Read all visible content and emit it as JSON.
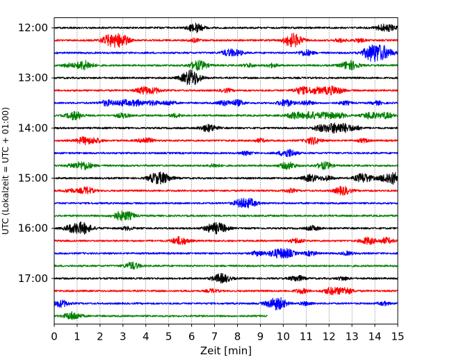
{
  "chart_data": {
    "type": "line",
    "subtype": "seismic-helicorder",
    "title": "",
    "xlabel": "Zeit  [min]",
    "ylabel": "UTC (Lokalzeit = UTC + 01:00)",
    "xlim": [
      0,
      15
    ],
    "x_ticks": [
      "0",
      "1",
      "2",
      "3",
      "4",
      "5",
      "6",
      "7",
      "8",
      "9",
      "10",
      "11",
      "12",
      "13",
      "14",
      "15"
    ],
    "y_ticks": [
      "12:00",
      "13:00",
      "14:00",
      "15:00",
      "16:00",
      "17:00"
    ],
    "grid": {
      "x": "dotted-vertical",
      "y": false
    },
    "trace_interval_minutes": 15,
    "trace_colors": [
      "#000000",
      "#ff0000",
      "#0000ff",
      "#008000"
    ],
    "traces": [
      {
        "start": "12:00",
        "end_min": 15,
        "events": [
          {
            "t": 6.1,
            "a": 0.55
          },
          {
            "t": 6.3,
            "a": 0.4
          },
          {
            "t": 14.3,
            "a": 0.5
          },
          {
            "t": 14.7,
            "a": 0.4
          }
        ]
      },
      {
        "start": "12:15",
        "end_min": 15,
        "events": [
          {
            "t": 2.7,
            "a": 0.9
          },
          {
            "t": 2.3,
            "a": 0.5
          },
          {
            "t": 3.0,
            "a": 0.5
          },
          {
            "t": 6.1,
            "a": 0.3
          },
          {
            "t": 10.5,
            "a": 0.8
          },
          {
            "t": 10.3,
            "a": 0.5
          },
          {
            "t": 12.5,
            "a": 0.3
          },
          {
            "t": 13.3,
            "a": 0.3
          }
        ]
      },
      {
        "start": "12:30",
        "end_min": 15,
        "events": [
          {
            "t": 7.6,
            "a": 0.5
          },
          {
            "t": 8.0,
            "a": 0.4
          },
          {
            "t": 11.0,
            "a": 0.5
          },
          {
            "t": 13.8,
            "a": 0.8
          },
          {
            "t": 14.4,
            "a": 0.9
          },
          {
            "t": 14.0,
            "a": 0.7
          }
        ]
      },
      {
        "start": "12:45",
        "end_min": 15,
        "events": [
          {
            "t": 1.3,
            "a": 0.8
          },
          {
            "t": 0.6,
            "a": 0.3
          },
          {
            "t": 6.3,
            "a": 0.8
          },
          {
            "t": 12.9,
            "a": 0.8
          },
          {
            "t": 8.5,
            "a": 0.3
          },
          {
            "t": 9.5,
            "a": 0.3
          }
        ]
      },
      {
        "start": "13:00",
        "end_min": 15,
        "events": [
          {
            "t": 5.9,
            "a": 0.9
          },
          {
            "t": 6.1,
            "a": 0.6
          }
        ]
      },
      {
        "start": "13:15",
        "end_min": 15,
        "events": [
          {
            "t": 3.9,
            "a": 0.6
          },
          {
            "t": 4.4,
            "a": 0.4
          },
          {
            "t": 7.5,
            "a": 0.3
          },
          {
            "t": 10.8,
            "a": 0.6
          },
          {
            "t": 11.4,
            "a": 0.5
          },
          {
            "t": 12.0,
            "a": 0.6
          },
          {
            "t": 12.4,
            "a": 0.4
          }
        ]
      },
      {
        "start": "13:30",
        "end_min": 15,
        "events": [
          {
            "t": 2.3,
            "a": 0.5
          },
          {
            "t": 3.0,
            "a": 0.5
          },
          {
            "t": 3.6,
            "a": 0.5
          },
          {
            "t": 4.3,
            "a": 0.4
          },
          {
            "t": 5.0,
            "a": 0.4
          },
          {
            "t": 7.4,
            "a": 0.4
          },
          {
            "t": 8.0,
            "a": 0.5
          },
          {
            "t": 10.1,
            "a": 0.6
          },
          {
            "t": 11.0,
            "a": 0.4
          },
          {
            "t": 12.7,
            "a": 0.3
          },
          {
            "t": 14.1,
            "a": 0.3
          }
        ]
      },
      {
        "start": "13:45",
        "end_min": 15,
        "events": [
          {
            "t": 0.9,
            "a": 0.7
          },
          {
            "t": 3.0,
            "a": 0.4
          },
          {
            "t": 5.3,
            "a": 0.3
          },
          {
            "t": 10.5,
            "a": 0.6
          },
          {
            "t": 11.2,
            "a": 0.6
          },
          {
            "t": 11.9,
            "a": 0.6
          },
          {
            "t": 12.5,
            "a": 0.4
          },
          {
            "t": 13.8,
            "a": 0.6
          },
          {
            "t": 14.5,
            "a": 0.5
          }
        ]
      },
      {
        "start": "14:00",
        "end_min": 15,
        "events": [
          {
            "t": 6.6,
            "a": 0.4
          },
          {
            "t": 6.9,
            "a": 0.4
          },
          {
            "t": 11.6,
            "a": 0.5
          },
          {
            "t": 12.2,
            "a": 0.8
          },
          {
            "t": 12.7,
            "a": 0.6
          },
          {
            "t": 13.2,
            "a": 0.3
          }
        ]
      },
      {
        "start": "14:15",
        "end_min": 15,
        "events": [
          {
            "t": 1.3,
            "a": 0.6
          },
          {
            "t": 1.8,
            "a": 0.4
          },
          {
            "t": 4.0,
            "a": 0.5
          },
          {
            "t": 9.0,
            "a": 0.3
          },
          {
            "t": 11.3,
            "a": 0.6
          },
          {
            "t": 13.5,
            "a": 0.3
          }
        ]
      },
      {
        "start": "14:30",
        "end_min": 15,
        "events": [
          {
            "t": 10.2,
            "a": 0.7
          },
          {
            "t": 8.4,
            "a": 0.3
          }
        ]
      },
      {
        "start": "14:45",
        "end_min": 15,
        "events": [
          {
            "t": 1.3,
            "a": 0.7
          },
          {
            "t": 0.8,
            "a": 0.3
          },
          {
            "t": 7.0,
            "a": 0.3
          },
          {
            "t": 10.2,
            "a": 0.6
          },
          {
            "t": 11.8,
            "a": 0.6
          }
        ]
      },
      {
        "start": "15:00",
        "end_min": 15,
        "events": [
          {
            "t": 4.3,
            "a": 0.4
          },
          {
            "t": 4.7,
            "a": 0.9
          },
          {
            "t": 11.2,
            "a": 0.6
          },
          {
            "t": 11.9,
            "a": 0.4
          },
          {
            "t": 13.5,
            "a": 0.8
          },
          {
            "t": 14.5,
            "a": 0.6
          },
          {
            "t": 14.9,
            "a": 0.8
          }
        ]
      },
      {
        "start": "15:15",
        "end_min": 15,
        "events": [
          {
            "t": 1.4,
            "a": 0.6
          },
          {
            "t": 0.7,
            "a": 0.3
          },
          {
            "t": 12.6,
            "a": 0.7
          },
          {
            "t": 10.3,
            "a": 0.3
          }
        ]
      },
      {
        "start": "15:30",
        "end_min": 15,
        "events": [
          {
            "t": 8.2,
            "a": 0.7
          },
          {
            "t": 8.6,
            "a": 0.5
          }
        ]
      },
      {
        "start": "15:45",
        "end_min": 15,
        "events": [
          {
            "t": 2.9,
            "a": 0.7
          },
          {
            "t": 3.3,
            "a": 0.4
          }
        ]
      },
      {
        "start": "16:00",
        "end_min": 15,
        "events": [
          {
            "t": 1.2,
            "a": 1.0
          },
          {
            "t": 0.7,
            "a": 0.4
          },
          {
            "t": 3.2,
            "a": 0.3
          },
          {
            "t": 6.9,
            "a": 0.7
          },
          {
            "t": 7.3,
            "a": 0.6
          },
          {
            "t": 11.3,
            "a": 0.4
          }
        ]
      },
      {
        "start": "16:15",
        "end_min": 15,
        "events": [
          {
            "t": 5.5,
            "a": 0.7
          },
          {
            "t": 10.6,
            "a": 0.4
          },
          {
            "t": 13.7,
            "a": 0.6
          },
          {
            "t": 14.5,
            "a": 0.5
          }
        ]
      },
      {
        "start": "16:30",
        "end_min": 15,
        "events": [
          {
            "t": 8.9,
            "a": 0.4
          },
          {
            "t": 9.6,
            "a": 0.5
          },
          {
            "t": 10.1,
            "a": 0.8
          },
          {
            "t": 11.2,
            "a": 0.4
          },
          {
            "t": 12.8,
            "a": 0.3
          }
        ]
      },
      {
        "start": "16:45",
        "end_min": 15,
        "events": [
          {
            "t": 3.4,
            "a": 0.6
          }
        ]
      },
      {
        "start": "17:00",
        "end_min": 15,
        "events": [
          {
            "t": 7.3,
            "a": 0.8
          },
          {
            "t": 10.6,
            "a": 0.5
          },
          {
            "t": 12.6,
            "a": 0.3
          }
        ]
      },
      {
        "start": "17:15",
        "end_min": 15,
        "events": [
          {
            "t": 6.9,
            "a": 0.3
          },
          {
            "t": 10.8,
            "a": 0.4
          },
          {
            "t": 12.1,
            "a": 0.6
          },
          {
            "t": 12.7,
            "a": 0.6
          }
        ]
      },
      {
        "start": "17:30",
        "end_min": 15,
        "events": [
          {
            "t": 0.3,
            "a": 0.6
          },
          {
            "t": 9.6,
            "a": 0.8
          },
          {
            "t": 9.9,
            "a": 0.5
          },
          {
            "t": 14.4,
            "a": 0.3
          },
          {
            "t": 11.0,
            "a": 0.3
          }
        ]
      },
      {
        "start": "17:45",
        "end_min": 9.3,
        "events": [
          {
            "t": 0.8,
            "a": 0.7
          }
        ]
      }
    ]
  }
}
